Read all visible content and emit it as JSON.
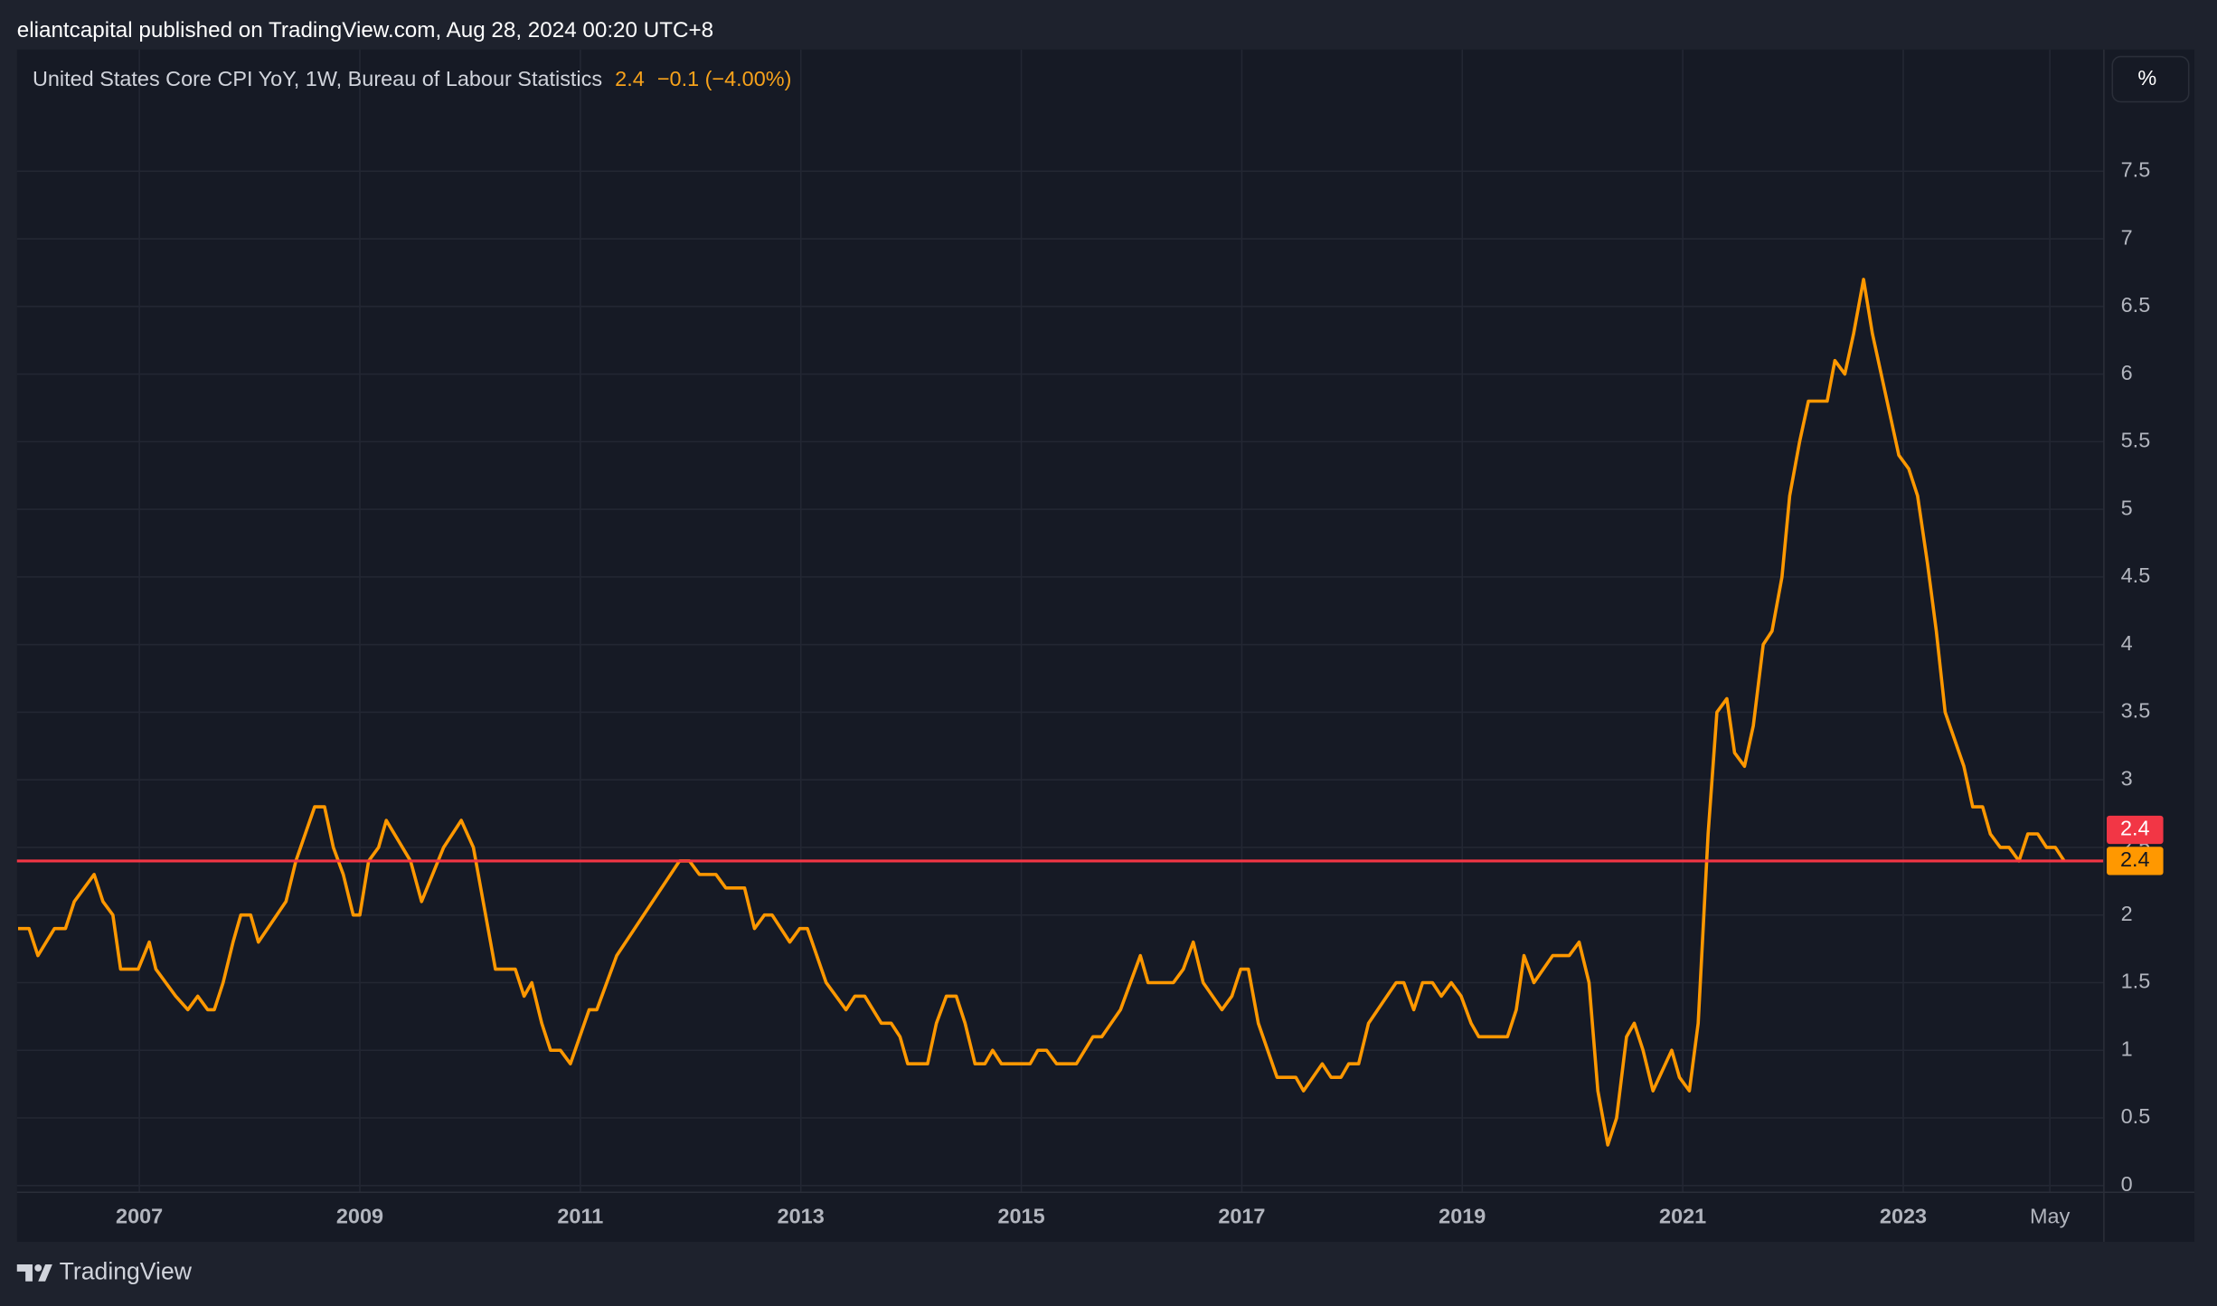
{
  "header": "eliantcapital published on TradingView.com, Aug 28, 2024 00:20 UTC+8",
  "footer": "TradingView",
  "chart_data": {
    "type": "line",
    "title": "United States Core CPI YoY, 1W, Bureau of Labour Statistics",
    "legend_value": 2.4,
    "legend_change": "−0.1 (−4.00%)",
    "axis_unit": "%",
    "price_line": 2.4,
    "price_line_color": "#f23645",
    "last_value": 2.4,
    "grid": true,
    "xlim": [
      2005.89,
      2024.82
    ],
    "xticks": [
      2007,
      2009,
      2011,
      2013,
      2015,
      2017,
      2019,
      2021,
      2023,
      {
        "value": 2024.33,
        "label": "May"
      }
    ],
    "ylim": [
      -0.05,
      8.4
    ],
    "yticks": [
      0,
      0.5,
      1,
      1.5,
      2,
      2.5,
      3,
      3.5,
      4,
      4.5,
      5,
      5.5,
      6,
      6.5,
      7,
      7.5
    ],
    "series": [
      {
        "name": "United States Core CPI YoY",
        "color": "#ff9800",
        "x": [
          2005.9,
          2006.0,
          2006.08,
          2006.23,
          2006.33,
          2006.41,
          2006.59,
          2006.67,
          2006.76,
          2006.83,
          2006.99,
          2007.09,
          2007.15,
          2007.33,
          2007.44,
          2007.53,
          2007.62,
          2007.68,
          2007.76,
          2007.85,
          2007.92,
          2008.01,
          2008.08,
          2008.33,
          2008.42,
          2008.59,
          2008.68,
          2008.76,
          2008.85,
          2008.94,
          2009.0,
          2009.08,
          2009.17,
          2009.24,
          2009.46,
          2009.56,
          2009.76,
          2009.92,
          2010.03,
          2010.23,
          2010.41,
          2010.49,
          2010.56,
          2010.65,
          2010.73,
          2010.82,
          2010.91,
          2011.08,
          2011.15,
          2011.33,
          2011.9,
          2011.99,
          2012.08,
          2012.23,
          2012.32,
          2012.49,
          2012.58,
          2012.67,
          2012.74,
          2012.9,
          2012.99,
          2013.06,
          2013.23,
          2013.41,
          2013.49,
          2013.58,
          2013.73,
          2013.82,
          2013.9,
          2013.97,
          2014.15,
          2014.23,
          2014.32,
          2014.41,
          2014.49,
          2014.58,
          2014.67,
          2014.74,
          2014.82,
          2015.08,
          2015.15,
          2015.23,
          2015.32,
          2015.5,
          2015.65,
          2015.73,
          2015.9,
          2015.99,
          2016.08,
          2016.15,
          2016.38,
          2016.47,
          2016.56,
          2016.65,
          2016.82,
          2016.91,
          2016.99,
          2017.06,
          2017.15,
          2017.32,
          2017.49,
          2017.56,
          2017.73,
          2017.81,
          2017.9,
          2017.97,
          2018.06,
          2018.15,
          2018.4,
          2018.47,
          2018.56,
          2018.64,
          2018.73,
          2018.81,
          2018.9,
          2018.99,
          2019.08,
          2019.15,
          2019.41,
          2019.49,
          2019.56,
          2019.65,
          2019.82,
          2019.97,
          2020.06,
          2020.15,
          2020.23,
          2020.32,
          2020.4,
          2020.49,
          2020.56,
          2020.64,
          2020.73,
          2020.9,
          2020.97,
          2021.06,
          2021.14,
          2021.23,
          2021.31,
          2021.4,
          2021.47,
          2021.56,
          2021.64,
          2021.73,
          2021.81,
          2021.9,
          2021.97,
          2022.06,
          2022.14,
          2022.31,
          2022.38,
          2022.47,
          2022.55,
          2022.64,
          2022.72,
          2022.96,
          2023.05,
          2023.13,
          2023.22,
          2023.3,
          2023.38,
          2023.55,
          2023.63,
          2023.72,
          2023.79,
          2023.88,
          2023.96,
          2024.05,
          2024.13,
          2024.22,
          2024.3,
          2024.38,
          2024.46
        ],
        "values": [
          1.9,
          1.9,
          1.7,
          1.9,
          1.9,
          2.1,
          2.3,
          2.1,
          2.0,
          1.6,
          1.6,
          1.8,
          1.6,
          1.4,
          1.3,
          1.4,
          1.3,
          1.3,
          1.5,
          1.8,
          2.0,
          2.0,
          1.8,
          2.1,
          2.4,
          2.8,
          2.8,
          2.5,
          2.3,
          2.0,
          2.0,
          2.4,
          2.5,
          2.7,
          2.4,
          2.1,
          2.5,
          2.7,
          2.5,
          1.6,
          1.6,
          1.4,
          1.5,
          1.2,
          1.0,
          1.0,
          0.9,
          1.3,
          1.3,
          1.7,
          2.4,
          2.4,
          2.3,
          2.3,
          2.2,
          2.2,
          1.9,
          2.0,
          2.0,
          1.8,
          1.9,
          1.9,
          1.5,
          1.3,
          1.4,
          1.4,
          1.2,
          1.2,
          1.1,
          0.9,
          0.9,
          1.2,
          1.4,
          1.4,
          1.2,
          0.9,
          0.9,
          1.0,
          0.9,
          0.9,
          1.0,
          1.0,
          0.9,
          0.9,
          1.1,
          1.1,
          1.3,
          1.5,
          1.7,
          1.5,
          1.5,
          1.6,
          1.8,
          1.5,
          1.3,
          1.4,
          1.6,
          1.6,
          1.2,
          0.8,
          0.8,
          0.7,
          0.9,
          0.8,
          0.8,
          0.9,
          0.9,
          1.2,
          1.5,
          1.5,
          1.3,
          1.5,
          1.5,
          1.4,
          1.5,
          1.4,
          1.2,
          1.1,
          1.1,
          1.3,
          1.7,
          1.5,
          1.7,
          1.7,
          1.8,
          1.5,
          0.7,
          0.3,
          0.5,
          1.1,
          1.2,
          1.0,
          0.7,
          1.0,
          0.8,
          0.7,
          1.2,
          2.6,
          3.5,
          3.6,
          3.2,
          3.1,
          3.4,
          4.0,
          4.1,
          4.5,
          5.1,
          5.5,
          5.8,
          5.8,
          6.1,
          6.0,
          6.3,
          6.7,
          6.3,
          5.4,
          5.3,
          5.1,
          4.6,
          4.1,
          3.5,
          3.1,
          2.8,
          2.8,
          2.6,
          2.5,
          2.5,
          2.4,
          2.6,
          2.6,
          2.5,
          2.5,
          2.4
        ]
      }
    ]
  }
}
